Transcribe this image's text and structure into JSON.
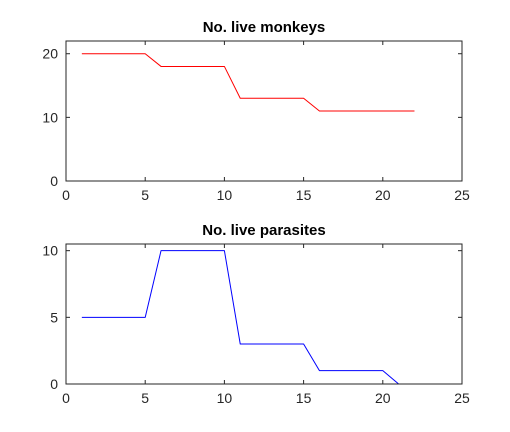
{
  "chart_data": [
    {
      "type": "line",
      "title": "No. live monkeys",
      "xlabel": "",
      "ylabel": "",
      "xlim": [
        0,
        25
      ],
      "ylim": [
        0,
        22
      ],
      "xticks": [
        0,
        5,
        10,
        15,
        20,
        25
      ],
      "yticks": [
        0,
        10,
        20
      ],
      "grid": false,
      "series": [
        {
          "color": "#ff0000",
          "x": [
            1,
            2,
            3,
            4,
            5,
            6,
            7,
            8,
            9,
            10,
            11,
            12,
            13,
            14,
            15,
            16,
            17,
            18,
            19,
            20,
            21,
            22
          ],
          "y": [
            20,
            20,
            20,
            20,
            20,
            18,
            18,
            18,
            18,
            18,
            13,
            13,
            13,
            13,
            13,
            11,
            11,
            11,
            11,
            11,
            11,
            11
          ]
        }
      ]
    },
    {
      "type": "line",
      "title": "No. live parasites",
      "xlabel": "",
      "ylabel": "",
      "xlim": [
        0,
        25
      ],
      "ylim": [
        0,
        10.5
      ],
      "xticks": [
        0,
        5,
        10,
        15,
        20,
        25
      ],
      "yticks": [
        0,
        5,
        10
      ],
      "grid": false,
      "series": [
        {
          "color": "#0000ff",
          "x": [
            1,
            2,
            3,
            4,
            5,
            6,
            7,
            8,
            9,
            10,
            11,
            12,
            13,
            14,
            15,
            16,
            17,
            18,
            19,
            20,
            21,
            22
          ],
          "y": [
            5,
            5,
            5,
            5,
            5,
            10,
            10,
            10,
            10,
            10,
            3,
            3,
            3,
            3,
            3,
            1,
            1,
            1,
            1,
            1,
            0,
            0
          ]
        }
      ]
    }
  ]
}
